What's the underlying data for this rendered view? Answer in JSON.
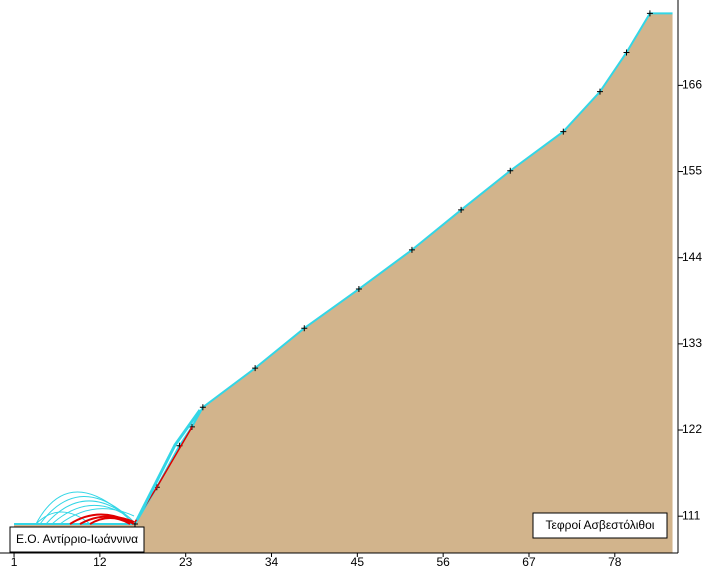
{
  "chart_data": {
    "type": "area",
    "x": [
      1,
      16.5,
      19.3,
      22.2,
      23.8,
      25.2,
      31.9,
      38.2,
      45.2,
      52.0,
      58.3,
      64.6,
      71.4,
      76.1,
      79.5,
      82.5,
      85.4
    ],
    "y": [
      110.0,
      110.0,
      114.7,
      120.0,
      122.4,
      124.9,
      129.9,
      135.0,
      140.0,
      145.0,
      150.1,
      155.1,
      160.1,
      165.2,
      170.2,
      175.2,
      175.2
    ],
    "xlim": [
      -0.8,
      86.1
    ],
    "ylim": [
      106.3,
      176.9
    ],
    "xticks": [
      1,
      12,
      23,
      34,
      45,
      56,
      67,
      78
    ],
    "yticks": [
      111,
      122,
      133,
      144,
      155,
      166
    ],
    "color": "#d2b48c",
    "line_color": "#33d6e6",
    "marker_color": "#000000",
    "annotations": [
      "Ε.Ο. Αντίρριο-Ιωάννινα",
      "Τεφροί Ασβεστόλιθοι"
    ]
  }
}
